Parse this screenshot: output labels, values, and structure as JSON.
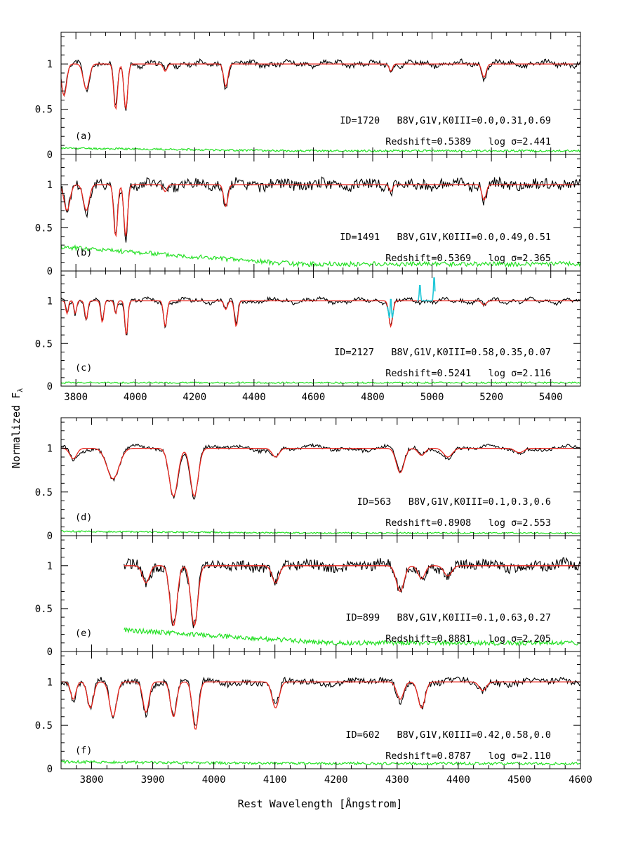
{
  "figure": {
    "ylabel": "Normalized F",
    "ylabel_sub": "λ",
    "xlabel": "Rest Wavelength [Ångstrom]"
  },
  "colors": {
    "data": "#000000",
    "model": "#e8261e",
    "error": "#22e022",
    "masked": "#1fc7d8"
  },
  "chart_data": [
    {
      "type": "line",
      "panel": "(a)",
      "group": "top",
      "xlim": [
        3750,
        5500
      ],
      "ylim": [
        0,
        1.35
      ],
      "xticks": [
        3800,
        4000,
        4200,
        4400,
        4600,
        4800,
        5000,
        5200,
        5400
      ],
      "yticks": [
        0,
        0.5,
        1
      ],
      "line1": "ID=1720   B8V,G1V,K0III=0.0,0.31,0.69",
      "line2": "Redshift=0.5389   log σ=2.441",
      "series": [
        "data",
        "model",
        "error"
      ],
      "features": [
        [
          3760,
          0.35,
          12
        ],
        [
          3835,
          0.28,
          14
        ],
        [
          3934,
          0.5,
          9
        ],
        [
          3968,
          0.5,
          9
        ],
        [
          4101,
          0.08,
          9
        ],
        [
          4305,
          0.25,
          10
        ],
        [
          4861,
          0.08,
          8
        ],
        [
          5175,
          0.15,
          10
        ]
      ],
      "error_base": [
        0.07,
        0.04
      ],
      "noise": 0.025
    },
    {
      "type": "line",
      "panel": "(b)",
      "group": "top",
      "xlim": [
        3750,
        5500
      ],
      "ylim": [
        0,
        1.35
      ],
      "xticks": [
        3800,
        4000,
        4200,
        4400,
        4600,
        4800,
        5000,
        5200,
        5400
      ],
      "yticks": [
        0,
        0.5,
        1
      ],
      "line1": "ID=1491   B8V,G1V,K0III=0.0,0.49,0.51",
      "line2": "Redshift=0.5369   log σ=2.365",
      "series": [
        "data",
        "model",
        "error"
      ],
      "features": [
        [
          3770,
          0.3,
          14
        ],
        [
          3835,
          0.3,
          14
        ],
        [
          3934,
          0.6,
          9
        ],
        [
          3968,
          0.6,
          9
        ],
        [
          4101,
          0.08,
          9
        ],
        [
          4305,
          0.25,
          10
        ],
        [
          4861,
          0.08,
          8
        ],
        [
          5175,
          0.18,
          10
        ]
      ],
      "error_base": [
        0.28,
        0.08
      ],
      "noise": 0.06
    },
    {
      "type": "line",
      "panel": "(c)",
      "group": "top",
      "xlim": [
        3750,
        5500
      ],
      "ylim": [
        0,
        1.35
      ],
      "xticks": [
        3800,
        4000,
        4200,
        4400,
        4600,
        4800,
        5000,
        5200,
        5400
      ],
      "yticks": [
        0,
        0.5,
        1
      ],
      "line1": "ID=2127   B8V,G1V,K0III=0.58,0.35,0.07",
      "line2": "Redshift=0.5241   log σ=2.116",
      "series": [
        "data",
        "model",
        "error",
        "masked"
      ],
      "features": [
        [
          3770,
          0.15,
          6
        ],
        [
          3798,
          0.15,
          6
        ],
        [
          3835,
          0.22,
          7
        ],
        [
          3889,
          0.25,
          7
        ],
        [
          3934,
          0.15,
          6
        ],
        [
          3970,
          0.4,
          7
        ],
        [
          4101,
          0.3,
          8
        ],
        [
          4305,
          0.1,
          8
        ],
        [
          4340,
          0.3,
          8
        ],
        [
          4861,
          0.3,
          9
        ],
        [
          5175,
          0.05,
          10
        ]
      ],
      "masked_ranges": [
        [
          4850,
          4870
        ],
        [
          4950,
          5010
        ]
      ],
      "error_base": [
        0.04,
        0.04
      ],
      "noise": 0.02
    },
    {
      "type": "line",
      "panel": "(d)",
      "group": "bottom",
      "xlim": [
        3750,
        4600
      ],
      "ylim": [
        0,
        1.35
      ],
      "xticks": [
        3800,
        3900,
        4000,
        4100,
        4200,
        4300,
        4400,
        4500,
        4600
      ],
      "yticks": [
        0,
        0.5,
        1
      ],
      "line1": "ID=563   B8V,G1V,K0III=0.1,0.3,0.6",
      "line2": "Redshift=0.8908   log σ=2.553",
      "series": [
        "data",
        "model",
        "error"
      ],
      "features": [
        [
          3770,
          0.12,
          8
        ],
        [
          3835,
          0.35,
          14
        ],
        [
          3934,
          0.55,
          10
        ],
        [
          3968,
          0.55,
          9
        ],
        [
          4101,
          0.1,
          8
        ],
        [
          4305,
          0.28,
          9
        ],
        [
          4340,
          0.08,
          8
        ],
        [
          4383,
          0.1,
          10
        ],
        [
          4500,
          0.05,
          10
        ]
      ],
      "error_base": [
        0.05,
        0.03
      ],
      "noise": 0.02
    },
    {
      "type": "line",
      "panel": "(e)",
      "group": "bottom",
      "xlim": [
        3750,
        4600
      ],
      "ylim": [
        0,
        1.35
      ],
      "xticks": [
        3800,
        3900,
        4000,
        4100,
        4200,
        4300,
        4400,
        4500,
        4600
      ],
      "yticks": [
        0,
        0.5,
        1
      ],
      "xstart": 3853,
      "line1": "ID=899   B8V,G1V,K0III=0.1,0.63,0.27",
      "line2": "Redshift=0.8881   log σ=2.205",
      "series": [
        "data",
        "model",
        "error"
      ],
      "features": [
        [
          3889,
          0.2,
          8
        ],
        [
          3934,
          0.7,
          8
        ],
        [
          3968,
          0.7,
          8
        ],
        [
          4101,
          0.2,
          8
        ],
        [
          4305,
          0.3,
          9
        ],
        [
          4340,
          0.15,
          8
        ],
        [
          4383,
          0.12,
          9
        ]
      ],
      "error_base": [
        0.25,
        0.1
      ],
      "noise": 0.06
    },
    {
      "type": "line",
      "panel": "(f)",
      "group": "bottom",
      "xlim": [
        3750,
        4600
      ],
      "ylim": [
        0,
        1.35
      ],
      "xticks": [
        3800,
        3900,
        4000,
        4100,
        4200,
        4300,
        4400,
        4500,
        4600
      ],
      "yticks": [
        0,
        0.5,
        1
      ],
      "line1": "ID=602   B8V,G1V,K0III=0.42,0.58,0.0",
      "line2": "Redshift=0.8787   log σ=2.110",
      "series": [
        "data",
        "model",
        "error"
      ],
      "features": [
        [
          3770,
          0.2,
          6
        ],
        [
          3798,
          0.3,
          7
        ],
        [
          3835,
          0.4,
          8
        ],
        [
          3889,
          0.35,
          7
        ],
        [
          3934,
          0.4,
          7
        ],
        [
          3970,
          0.55,
          7
        ],
        [
          4101,
          0.3,
          8
        ],
        [
          4305,
          0.2,
          8
        ],
        [
          4340,
          0.3,
          8
        ],
        [
          4440,
          0.1,
          8
        ]
      ],
      "error_base": [
        0.08,
        0.06
      ],
      "noise": 0.035
    }
  ]
}
